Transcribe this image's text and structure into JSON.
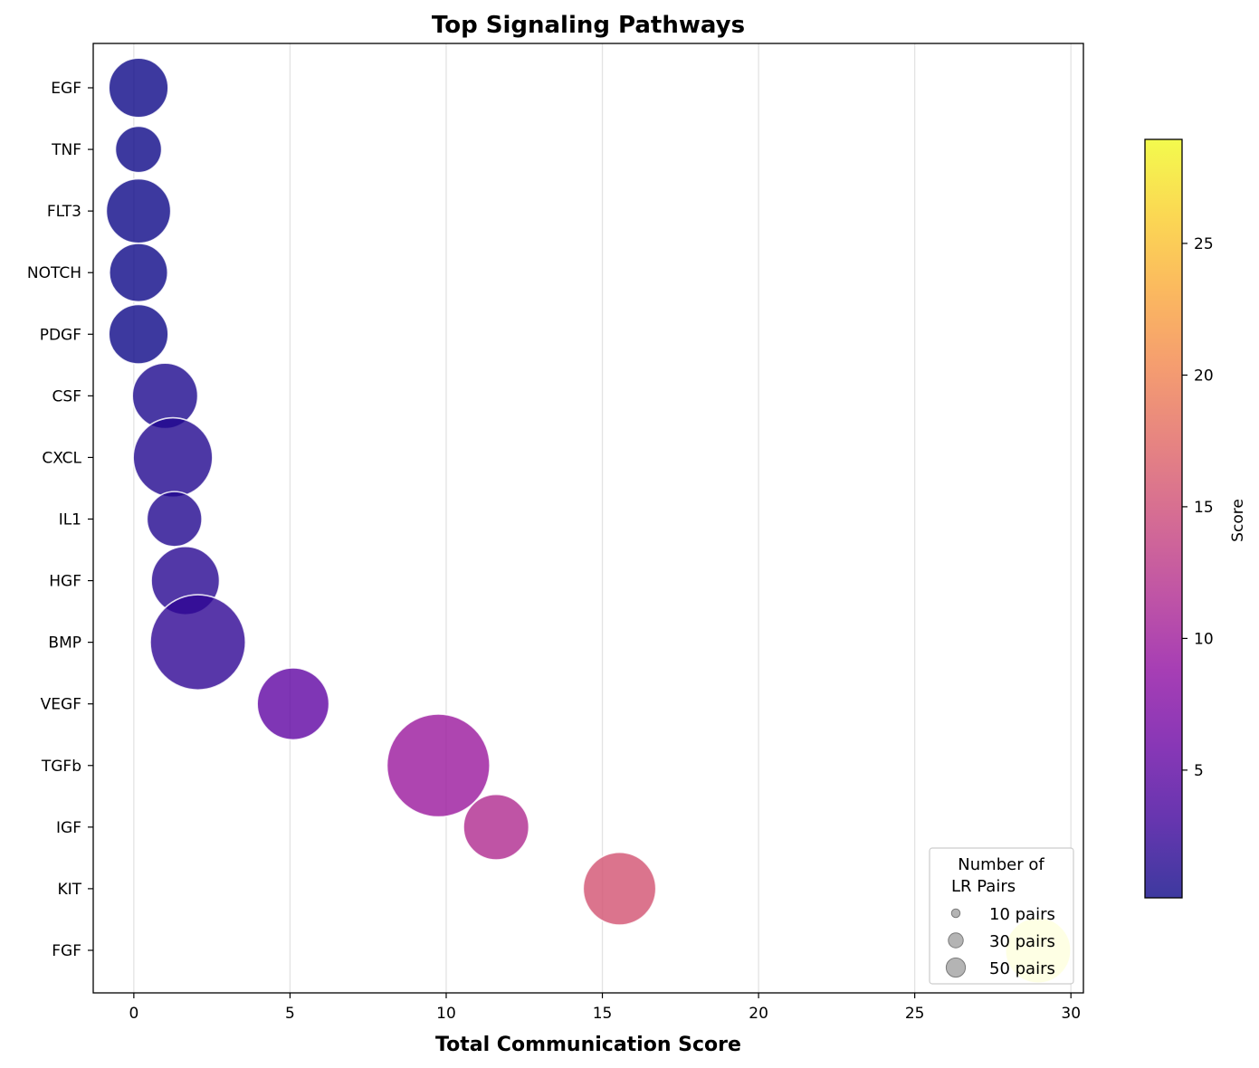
{
  "chart_data": {
    "type": "scatter",
    "title": "Top Signaling Pathways",
    "xlabel": "Total Communication Score",
    "ylabel": "",
    "xlim": [
      -1.3,
      30.4
    ],
    "xticks": [
      0,
      5,
      10,
      15,
      20,
      25,
      30
    ],
    "grid": "vertical",
    "categories": [
      "EGF",
      "TNF",
      "FLT3",
      "NOTCH",
      "PDGF",
      "CSF",
      "CXCL",
      "IL1",
      "HGF",
      "BMP",
      "VEGF",
      "TGFb",
      "IGF",
      "KIT",
      "FGF"
    ],
    "points": [
      {
        "label": "EGF",
        "x": 0.15,
        "score": 0.15,
        "lr_pairs": 28
      },
      {
        "label": "TNF",
        "x": 0.15,
        "score": 0.15,
        "lr_pairs": 17
      },
      {
        "label": "FLT3",
        "x": 0.15,
        "score": 0.15,
        "lr_pairs": 33
      },
      {
        "label": "NOTCH",
        "x": 0.15,
        "score": 0.15,
        "lr_pairs": 27
      },
      {
        "label": "PDGF",
        "x": 0.15,
        "score": 0.15,
        "lr_pairs": 28
      },
      {
        "label": "CSF",
        "x": 1.0,
        "score": 1.0,
        "lr_pairs": 34
      },
      {
        "label": "CXCL",
        "x": 1.25,
        "score": 1.25,
        "lr_pairs": 50
      },
      {
        "label": "IL1",
        "x": 1.3,
        "score": 1.3,
        "lr_pairs": 24
      },
      {
        "label": "HGF",
        "x": 1.65,
        "score": 1.65,
        "lr_pairs": 37
      },
      {
        "label": "BMP",
        "x": 2.05,
        "score": 2.05,
        "lr_pairs": 72
      },
      {
        "label": "VEGF",
        "x": 5.1,
        "score": 5.1,
        "lr_pairs": 41
      },
      {
        "label": "TGFb",
        "x": 9.75,
        "score": 9.75,
        "lr_pairs": 84
      },
      {
        "label": "IGF",
        "x": 11.6,
        "score": 11.6,
        "lr_pairs": 34
      },
      {
        "label": "KIT",
        "x": 15.55,
        "score": 15.55,
        "lr_pairs": 42
      },
      {
        "label": "FGF",
        "x": 28.95,
        "score": 28.95,
        "lr_pairs": 34
      }
    ],
    "colorbar": {
      "label": "Score",
      "colormap": "plasma",
      "range": [
        0.15,
        28.95
      ],
      "ticks": [
        5,
        10,
        15,
        20,
        25
      ]
    },
    "size_legend": {
      "title_lines": [
        "Number of",
        "LR Pairs"
      ],
      "placement": "lower-right",
      "entries": [
        {
          "label": "10 pairs",
          "pairs": 10
        },
        {
          "label": "30 pairs",
          "pairs": 30
        },
        {
          "label": "50 pairs",
          "pairs": 50
        }
      ]
    },
    "colors": {
      "marker_edge": "#ffffff",
      "grid": "#e3e3e3",
      "legend_marker": "#8c8c8c"
    }
  }
}
